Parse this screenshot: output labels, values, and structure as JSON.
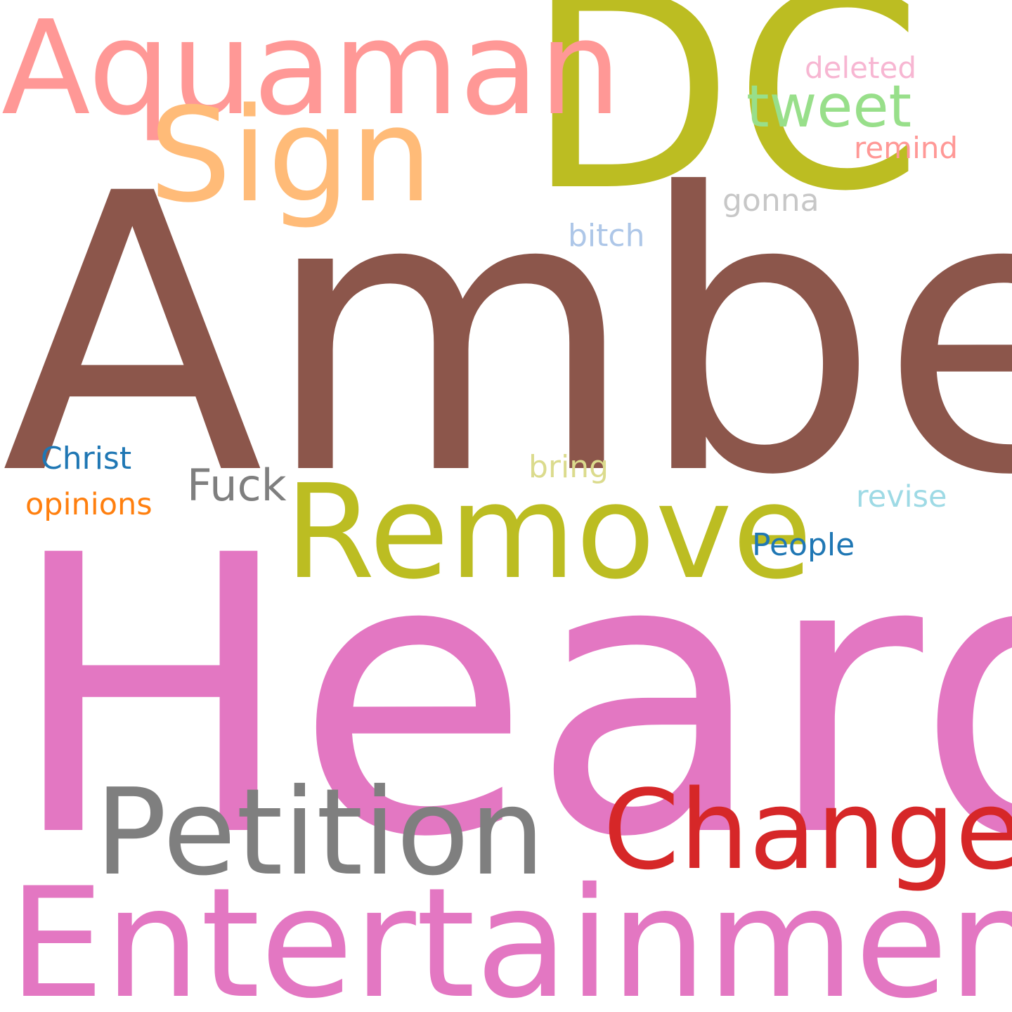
{
  "background": "#ffffff",
  "words": {
    "amber": {
      "text": "Amber",
      "color": "#8c564b"
    },
    "heard": {
      "text": "Heard",
      "color": "#e377c2"
    },
    "dc": {
      "text": "DC",
      "color": "#bcbd22"
    },
    "entertainment": {
      "text": "Entertainment",
      "color": "#e377c2"
    },
    "aquaman": {
      "text": "Aquaman",
      "color": "#ff9896"
    },
    "sign": {
      "text": "Sign",
      "color": "#ffbb78"
    },
    "remove": {
      "text": "Remove",
      "color": "#bcbd22"
    },
    "petition": {
      "text": "Petition",
      "color": "#7f7f7f"
    },
    "change": {
      "text": "Change",
      "color": "#d62728"
    },
    "tweet": {
      "text": "tweet",
      "color": "#98df8a"
    },
    "fuck": {
      "text": "Fuck",
      "color": "#7f7f7f"
    },
    "christ": {
      "text": "Christ",
      "color": "#1f77b4"
    },
    "opinions": {
      "text": "opinions",
      "color": "#ff7f0e"
    },
    "deleted": {
      "text": "deleted",
      "color": "#f7b6d2"
    },
    "remind": {
      "text": "remind",
      "color": "#ff9896"
    },
    "gonna": {
      "text": "gonna",
      "color": "#c7c7c7"
    },
    "bitch": {
      "text": "bitch",
      "color": "#aec7e8"
    },
    "bring": {
      "text": "bring",
      "color": "#dbdb8d"
    },
    "revise": {
      "text": "revise",
      "color": "#9edae5"
    },
    "people": {
      "text": "People",
      "color": "#1f77b4"
    }
  }
}
